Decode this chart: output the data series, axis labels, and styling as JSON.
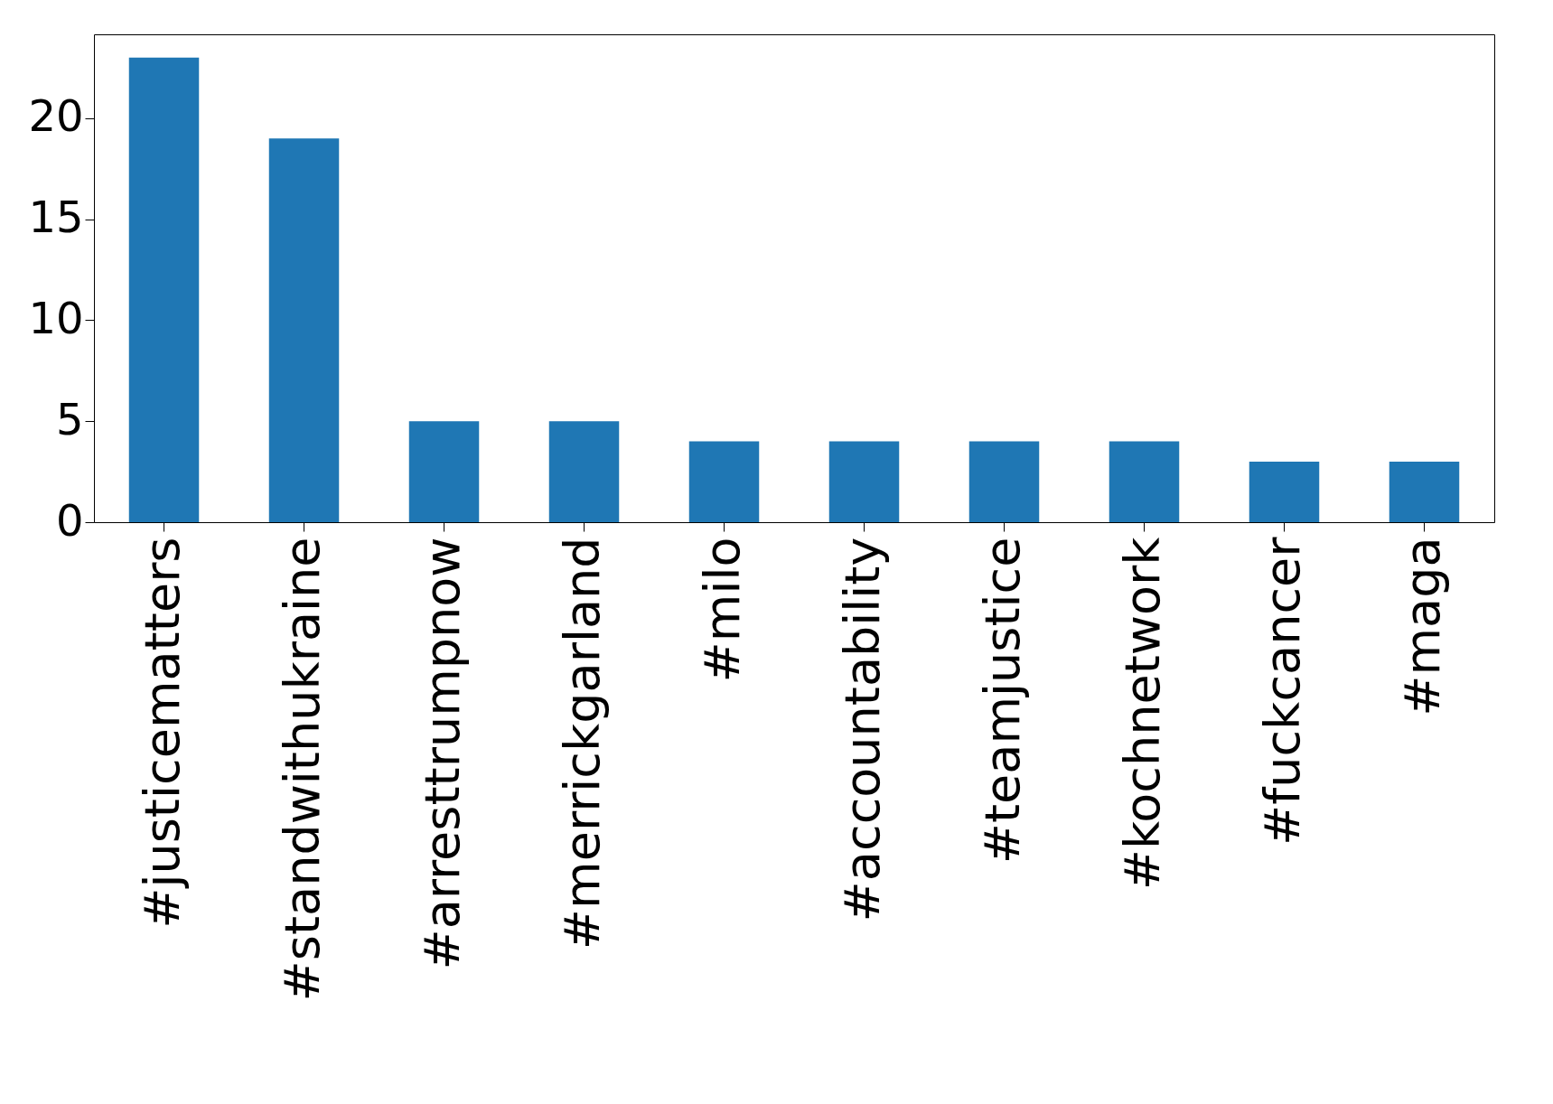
{
  "chart_data": {
    "type": "bar",
    "categories": [
      "#justicematters",
      "#standwithukraine",
      "#arresttrumpnow",
      "#merrickgarland",
      "#milo",
      "#accountability",
      "#teamjustice",
      "#kochnetwork",
      "#fuckcancer",
      "#maga"
    ],
    "values": [
      23,
      19,
      5,
      5,
      4,
      4,
      4,
      4,
      3,
      3
    ],
    "color": "#1f77b4",
    "ylim": [
      0,
      24.15
    ],
    "yticks": [
      0,
      5,
      10,
      15,
      20
    ],
    "grid": false
  }
}
